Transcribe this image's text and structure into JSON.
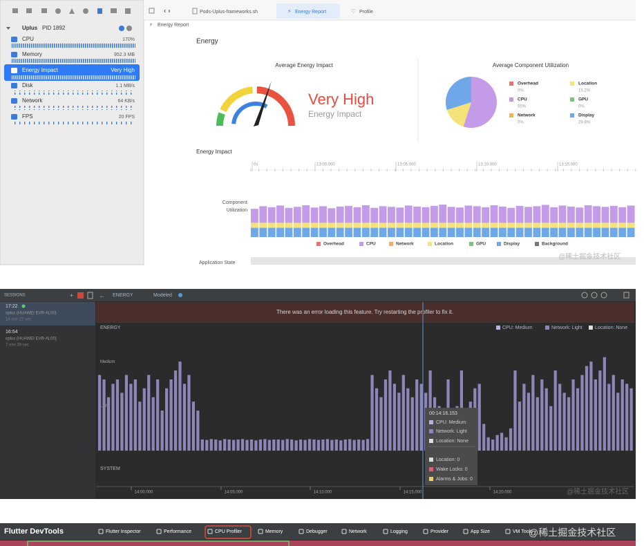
{
  "xcode": {
    "tabs": [
      "Pods-Uplus-frameworks.sh",
      "Energy Report",
      "Profile"
    ],
    "breadcrumb": "Energy Report",
    "process": "Uplus",
    "pid": "PID 1892",
    "gauges": [
      {
        "name": "CPU",
        "value": "170%"
      },
      {
        "name": "Memory",
        "value": "952.3 MB"
      },
      {
        "name": "Energy Impact",
        "value": "Very High"
      },
      {
        "name": "Disk",
        "value": "1.1 MB/s"
      },
      {
        "name": "Network",
        "value": "64 KB/s"
      },
      {
        "name": "FPS",
        "value": "20 FPS"
      }
    ],
    "section_title": "Energy",
    "avg_title": "Average Energy Impact",
    "impact_level": "Very High",
    "impact_caption": "Energy Impact",
    "utilization": {
      "type": "pie",
      "title": "Average Component Utilization",
      "categories": [
        "Overhead",
        "CPU",
        "Network",
        "Location",
        "GPU",
        "Display"
      ],
      "colors": [
        "#e57373",
        "#c39be8",
        "#f0b060",
        "#f5e27a",
        "#7cc47c",
        "#6fa8e8"
      ],
      "values": [
        0,
        55,
        0,
        15.2,
        0,
        29.8
      ],
      "value_labels": [
        "0%",
        "55%",
        "0%",
        "15.2%",
        "0%",
        "29.8%"
      ]
    },
    "timeline_title": "Energy Impact",
    "timeline_ticks": [
      "0s",
      "13:00.000",
      "13:05.000",
      "13:10.000",
      "13:15.000"
    ],
    "component_label": [
      "Component",
      "Utilization"
    ],
    "components": {
      "type": "bar",
      "stacked": true,
      "series": [
        {
          "name": "Display",
          "color": "#6fa8e8",
          "values": [
            28,
            28,
            28,
            28,
            28,
            28,
            28,
            28,
            28,
            28,
            28,
            28,
            28,
            28,
            28,
            28,
            28,
            28,
            28,
            28,
            28,
            28,
            28,
            28,
            28,
            28,
            28,
            28,
            28,
            28,
            28,
            28,
            28,
            28,
            28,
            28,
            28,
            28,
            28,
            28,
            28,
            28,
            28,
            28,
            28
          ]
        },
        {
          "name": "Location",
          "color": "#f5e27a",
          "values": [
            15,
            15,
            15,
            15,
            15,
            15,
            15,
            15,
            15,
            15,
            15,
            15,
            15,
            15,
            15,
            15,
            15,
            15,
            15,
            15,
            15,
            15,
            15,
            15,
            15,
            15,
            15,
            15,
            15,
            15,
            15,
            15,
            15,
            15,
            15,
            15,
            15,
            15,
            15,
            15,
            15,
            15,
            15,
            15,
            15
          ]
        },
        {
          "name": "CPU",
          "color": "#c39be8",
          "values": [
            42,
            50,
            47,
            52,
            45,
            48,
            53,
            46,
            50,
            44,
            49,
            51,
            47,
            53,
            45,
            50,
            48,
            46,
            52,
            49,
            47,
            51,
            55,
            48,
            46,
            52,
            50,
            47,
            53,
            49,
            45,
            51,
            48,
            50,
            54,
            47,
            52,
            49,
            46,
            53,
            50,
            48,
            51,
            47,
            52
          ]
        }
      ]
    },
    "legend": [
      {
        "name": "Overhead",
        "color": "#e57373"
      },
      {
        "name": "CPU",
        "color": "#c39be8"
      },
      {
        "name": "Network",
        "color": "#f0b060"
      },
      {
        "name": "Location",
        "color": "#f5e27a"
      },
      {
        "name": "GPU",
        "color": "#7cc47c"
      },
      {
        "name": "Display",
        "color": "#6fa8e8"
      },
      {
        "name": "Background",
        "color": "#777777"
      }
    ],
    "app_state": "Application State",
    "watermark": "@稀土掘金技术社区"
  },
  "studio": {
    "sessions_title": "SESSIONS",
    "sessions": [
      {
        "time": "17:22",
        "device": "oplus (HUAWEI EVR-AL00)",
        "duration": "14 min 27 sec"
      },
      {
        "time": "16:54",
        "device": "oplus (HUAWEI EVR-AL00)",
        "duration": "7 min 39 sec"
      }
    ],
    "toolbar": [
      "ENERGY",
      "Modeled"
    ],
    "error": "There was an error loading this feature. Try restarting the profiler to fix it.",
    "energy": {
      "type": "bar",
      "title": "ENERGY",
      "color": "#8e86b8",
      "legend": [
        {
          "name": "CPU: Medium",
          "color": "#b9b2e0"
        },
        {
          "name": "Network: Light",
          "color": "#8e86b8"
        },
        {
          "name": "Location: None",
          "color": "#dddddd"
        }
      ],
      "ylim": [
        0,
        2.5
      ],
      "yticks": [
        {
          "value": 1,
          "label": "Light"
        },
        {
          "value": 2,
          "label": "Medium"
        }
      ],
      "values": [
        1.7,
        1.6,
        1.2,
        1.5,
        1.6,
        1.3,
        1.7,
        1.5,
        1.6,
        1.1,
        1.4,
        1.7,
        1.2,
        1.6,
        0.9,
        1.4,
        1.6,
        1.8,
        2.0,
        1.5,
        1.7,
        1.1,
        0.9,
        0.25,
        0.24,
        0.26,
        0.25,
        0.23,
        0.26,
        0.25,
        0.24,
        0.25,
        0.26,
        0.24,
        0.25,
        0.23,
        0.25,
        0.26,
        0.24,
        0.25,
        0.25,
        0.24,
        0.26,
        0.25,
        0.23,
        0.25,
        0.24,
        0.26,
        0.25,
        0.24,
        0.25,
        0.26,
        0.24,
        0.25,
        0.23,
        0.25,
        0.26,
        0.24,
        0.25,
        0.24,
        0.26,
        1.7,
        1.4,
        1.2,
        1.6,
        1.8,
        1.5,
        1.3,
        1.7,
        1.4,
        1.2,
        1.6,
        1.5,
        1.3,
        1.8,
        1.2,
        1.0,
        0.9,
        1.6,
        0.8,
        1.0,
        1.8,
        0.9,
        1.1,
        1.4,
        1.5,
        0.6,
        0.3,
        0.25,
        0.35,
        0.4,
        0.3,
        0.5,
        1.8,
        1.1,
        1.5,
        1.3,
        1.7,
        1.2,
        1.6,
        1.4,
        1.0,
        1.8,
        1.5,
        1.3,
        1.2,
        1.6,
        1.4,
        1.7,
        1.9,
        2.0,
        1.6,
        1.8,
        2.1,
        1.5,
        1.7,
        1.3,
        1.6,
        1.5,
        1.4
      ],
      "xticks": [
        "14:00.000",
        "14:05.000",
        "14:10.000",
        "14:15.000",
        "14:20.000"
      ]
    },
    "system": "SYSTEM",
    "tooltip": {
      "time": "00:14:16.153",
      "lines": [
        {
          "text": "CPU: Medium",
          "color": "#b9b2e0"
        },
        {
          "text": "Network: Light",
          "color": "#8e86b8"
        },
        {
          "text": "Location: None",
          "color": "#dddddd"
        },
        {
          "text": "Location: 0",
          "color": "#dddddd"
        },
        {
          "text": "Wake Locks: 0",
          "color": "#e06070"
        },
        {
          "text": "Alarms & Jobs: 0",
          "color": "#e8d070"
        }
      ]
    },
    "watermark": "@稀土掘金技术社区"
  },
  "flutter": {
    "title": "Flutter DevTools",
    "tabs": [
      "Flutter Inspector",
      "Performance",
      "CPU Profiler",
      "Memory",
      "Debugger",
      "Network",
      "Logging",
      "Provider",
      "App Size",
      "VM Tools"
    ],
    "active_tab": 2,
    "watermark": "@稀土掘金技术社区"
  }
}
